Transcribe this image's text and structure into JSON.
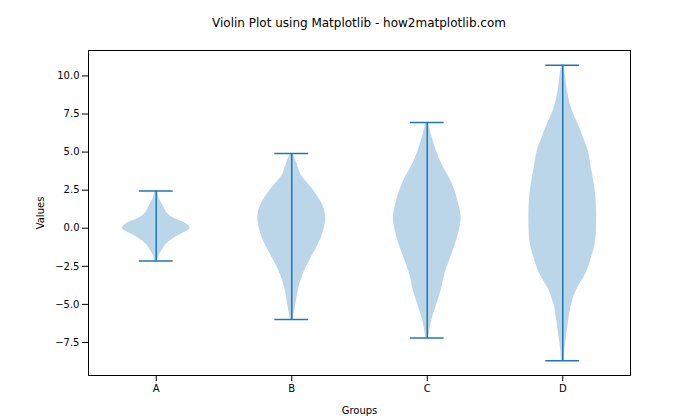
{
  "chart_data": {
    "type": "violin",
    "title": "Violin Plot using Matplotlib - how2matplotlib.com",
    "x_label": "Groups",
    "y_label": "Values",
    "categories": [
      "A",
      "B",
      "C",
      "D"
    ],
    "color": "#1f77b4",
    "ylim": [
      -9.67,
      11.67
    ],
    "yticks": [
      {
        "value": -7.5,
        "label": "−7.5"
      },
      {
        "value": -5,
        "label": "−5.0"
      },
      {
        "value": -2.5,
        "label": "−2.5"
      },
      {
        "value": 0,
        "label": "0.0"
      },
      2.5,
      {
        "value": 5,
        "label": "5.0"
      },
      7.5,
      {
        "value": 10,
        "label": "10.0"
      }
    ],
    "mins": [
      -2.15,
      -6.0,
      -7.2,
      -8.7
    ],
    "maxes": [
      2.45,
      4.9,
      6.95,
      10.7
    ],
    "violins": [
      {
        "y": [
          -2.15,
          -1.8,
          -1.5,
          -1.0,
          -0.5,
          0,
          0.3,
          0.7,
          1.0,
          1.5,
          2.0,
          2.45
        ],
        "width": [
          0.01,
          0.02,
          0.04,
          0.08,
          0.16,
          0.25,
          0.22,
          0.12,
          0.08,
          0.05,
          0.02,
          0.01
        ]
      },
      {
        "y": [
          -6.0,
          -5,
          -4,
          -3,
          -2,
          -1,
          0,
          0.8,
          1.5,
          2.5,
          3.5,
          4.2,
          4.9
        ],
        "width": [
          0.01,
          0.03,
          0.05,
          0.085,
          0.14,
          0.2,
          0.24,
          0.25,
          0.23,
          0.16,
          0.07,
          0.04,
          0.01
        ]
      },
      {
        "y": [
          -7.2,
          -6,
          -5,
          -4,
          -3,
          -2,
          -1,
          0,
          0.7,
          2,
          3,
          4,
          5,
          6,
          6.95
        ],
        "width": [
          0.01,
          0.035,
          0.07,
          0.105,
          0.13,
          0.17,
          0.21,
          0.24,
          0.25,
          0.22,
          0.18,
          0.12,
          0.07,
          0.035,
          0.01
        ]
      },
      {
        "y": [
          -8.7,
          -8,
          -7,
          -6,
          -5,
          -4,
          -3,
          -2,
          -1,
          0.5,
          2,
          3,
          4,
          5,
          6,
          7,
          8,
          9,
          10,
          10.7
        ],
        "width": [
          0.01,
          0.015,
          0.03,
          0.045,
          0.065,
          0.105,
          0.17,
          0.21,
          0.24,
          0.25,
          0.245,
          0.23,
          0.21,
          0.19,
          0.15,
          0.105,
          0.06,
          0.035,
          0.02,
          0.01
        ]
      }
    ]
  }
}
